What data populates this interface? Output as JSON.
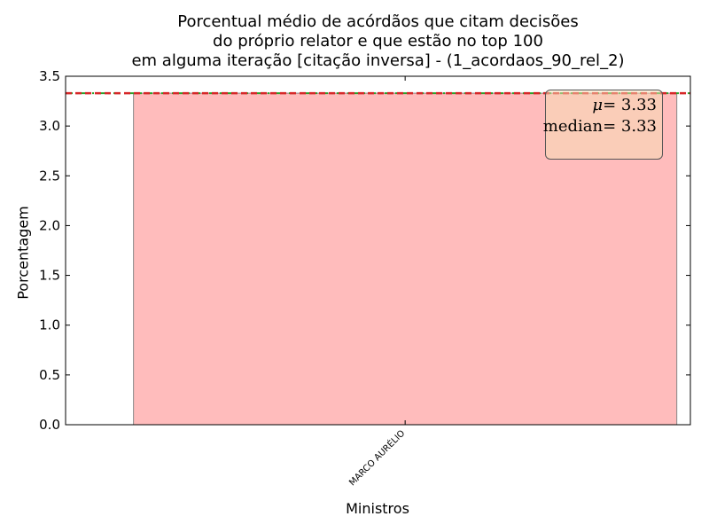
{
  "chart_data": {
    "type": "bar",
    "title_lines": [
      "Porcentual médio de acórdãos que citam decisões",
      "do próprio relator e que estão no top 100",
      "em alguma iteração [citação inversa] - (1_acordaos_90_rel_2)"
    ],
    "xlabel": "Ministros",
    "ylabel": "Porcentagem",
    "categories": [
      "MARCO AURÉLIO"
    ],
    "values": [
      3.33
    ],
    "ylim": [
      0,
      3.5
    ],
    "yticks": [
      "0.0",
      "0.5",
      "1.0",
      "1.5",
      "2.0",
      "2.5",
      "3.0",
      "3.5"
    ],
    "mean_line": 3.33,
    "median_line": 3.33,
    "stats": {
      "mean_symbol": "μ",
      "mean_value": "= 3.33",
      "median_label": "median",
      "median_value": "= 3.33",
      "placement": "top-right"
    },
    "grid": false,
    "colors": {
      "bar_fill": "#ffbcbc",
      "bar_edge": "#888888",
      "mean_line": "#2ca02c",
      "median_line": "#d62728",
      "stats_box": "#f5deb3"
    }
  }
}
